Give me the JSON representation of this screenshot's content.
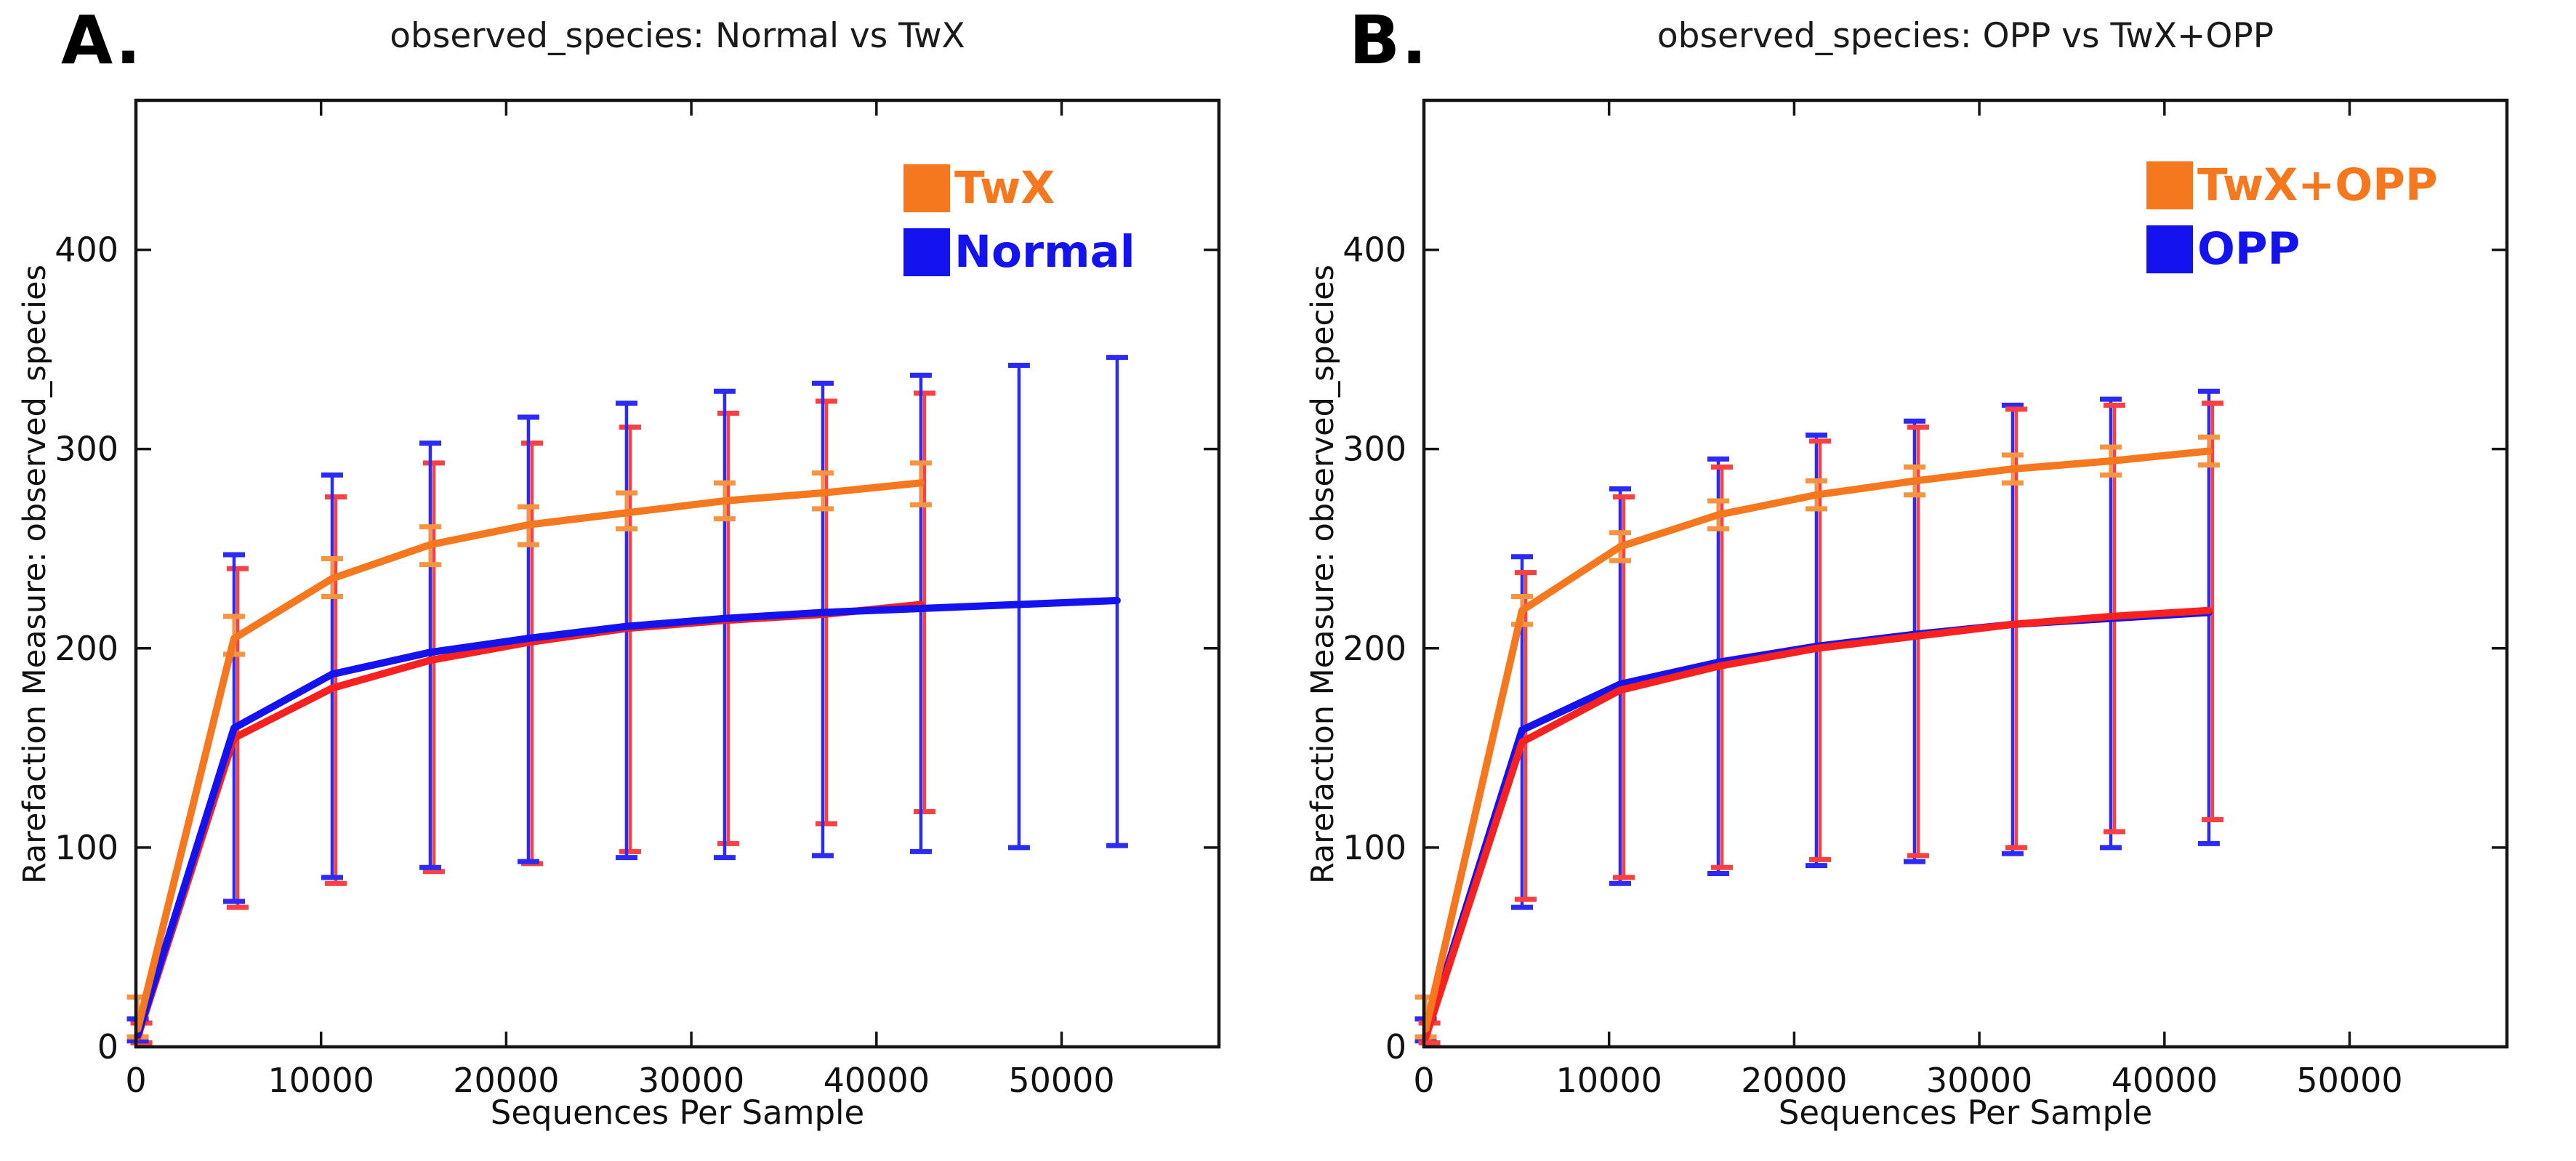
{
  "figure": {
    "background": "#ffffff",
    "frame_color": "#151515",
    "text_color": "#111111"
  },
  "chart_data": [
    {
      "type": "line",
      "panel_label": "A.",
      "title": "observed_species: Normal vs TwX",
      "xlabel": "Sequences Per Sample",
      "ylabel": "Rarefaction Measure: observed_species",
      "xlim": [
        0,
        58500
      ],
      "ylim": [
        0,
        475
      ],
      "x_ticks": [
        0,
        10000,
        20000,
        30000,
        40000,
        50000
      ],
      "y_ticks": [
        0,
        100,
        200,
        300,
        400
      ],
      "grid": false,
      "legend_position": "upper-right-inside",
      "legend": [
        {
          "label": "TwX",
          "color": "#f5771e"
        },
        {
          "label": "Normal",
          "color": "#1512f0"
        }
      ],
      "series": [
        {
          "name": "red-unlabeled",
          "color": "#f92020",
          "err_color": "#fa4040",
          "bar_dx": 5,
          "in_legend": false,
          "x": [
            100,
            5300,
            10600,
            15900,
            21200,
            26500,
            31800,
            37100,
            42400
          ],
          "y": [
            5,
            155,
            180,
            194,
            203,
            210,
            214,
            217,
            222
          ],
          "err_lo": [
            2,
            70,
            82,
            88,
            92,
            98,
            102,
            112,
            118
          ],
          "err_hi": [
            12,
            240,
            276,
            293,
            303,
            311,
            318,
            324,
            328
          ]
        },
        {
          "name": "Normal",
          "color": "#1512f0",
          "err_color": "#2b2bf5",
          "bar_dx": 0,
          "in_legend": true,
          "x": [
            100,
            5300,
            10600,
            15900,
            21200,
            26500,
            31800,
            37100,
            42400,
            47700,
            53000
          ],
          "y": [
            6,
            160,
            187,
            198,
            205,
            211,
            215,
            218,
            220,
            222,
            224
          ],
          "err_lo": [
            3,
            73,
            85,
            90,
            93,
            95,
            95,
            96,
            98,
            100,
            101
          ],
          "err_hi": [
            14,
            247,
            287,
            303,
            316,
            323,
            329,
            333,
            337,
            342,
            346
          ]
        },
        {
          "name": "TwX",
          "color": "#f5771e",
          "err_color": "#f79440",
          "bar_dx": 0,
          "in_legend": true,
          "x": [
            100,
            5300,
            10600,
            15900,
            21200,
            26500,
            31800,
            37100,
            42400
          ],
          "y": [
            9,
            205,
            235,
            252,
            262,
            268,
            274,
            278,
            283
          ],
          "err_lo": [
            5,
            197,
            226,
            242,
            252,
            260,
            265,
            270,
            272
          ],
          "err_hi": [
            25,
            216,
            245,
            261,
            271,
            278,
            283,
            288,
            293
          ]
        }
      ]
    },
    {
      "type": "line",
      "panel_label": "B.",
      "title": "observed_species: OPP vs TwX+OPP",
      "xlabel": "Sequences Per Sample",
      "ylabel": "Rarefaction Measure: observed_species",
      "xlim": [
        0,
        58500
      ],
      "ylim": [
        0,
        475
      ],
      "x_ticks": [
        0,
        10000,
        20000,
        30000,
        40000,
        50000
      ],
      "y_ticks": [
        0,
        100,
        200,
        300,
        400
      ],
      "grid": false,
      "legend_position": "upper-right-inside",
      "legend": [
        {
          "label": "TwX+OPP",
          "color": "#f5771e"
        },
        {
          "label": "OPP",
          "color": "#1512f0"
        }
      ],
      "series": [
        {
          "name": "OPP",
          "color": "#1512f0",
          "err_color": "#2b2bf5",
          "bar_dx": 0,
          "in_legend": true,
          "x": [
            100,
            5300,
            10600,
            15900,
            21200,
            26500,
            31800,
            37100,
            42400
          ],
          "y": [
            6,
            159,
            182,
            193,
            201,
            207,
            212,
            215,
            218
          ],
          "err_lo": [
            3,
            70,
            82,
            87,
            91,
            93,
            97,
            100,
            102
          ],
          "err_hi": [
            14,
            246,
            280,
            295,
            307,
            314,
            322,
            325,
            329
          ]
        },
        {
          "name": "red-unlabeled",
          "color": "#f92020",
          "err_color": "#fa4040",
          "bar_dx": 5,
          "in_legend": false,
          "x": [
            100,
            5300,
            10600,
            15900,
            21200,
            26500,
            31800,
            37100,
            42400
          ],
          "y": [
            5,
            153,
            179,
            191,
            200,
            206,
            212,
            216,
            219
          ],
          "err_lo": [
            2,
            74,
            85,
            90,
            94,
            96,
            100,
            108,
            114
          ],
          "err_hi": [
            12,
            238,
            276,
            291,
            304,
            311,
            320,
            322,
            323
          ]
        },
        {
          "name": "TwX+OPP",
          "color": "#f5771e",
          "err_color": "#f79440",
          "bar_dx": 0,
          "in_legend": true,
          "x": [
            100,
            5300,
            10600,
            15900,
            21200,
            26500,
            31800,
            37100,
            42400
          ],
          "y": [
            9,
            219,
            251,
            267,
            277,
            284,
            290,
            294,
            299
          ],
          "err_lo": [
            5,
            212,
            244,
            260,
            270,
            277,
            283,
            287,
            292
          ],
          "err_hi": [
            25,
            226,
            258,
            274,
            284,
            291,
            297,
            301,
            306
          ]
        }
      ]
    }
  ]
}
